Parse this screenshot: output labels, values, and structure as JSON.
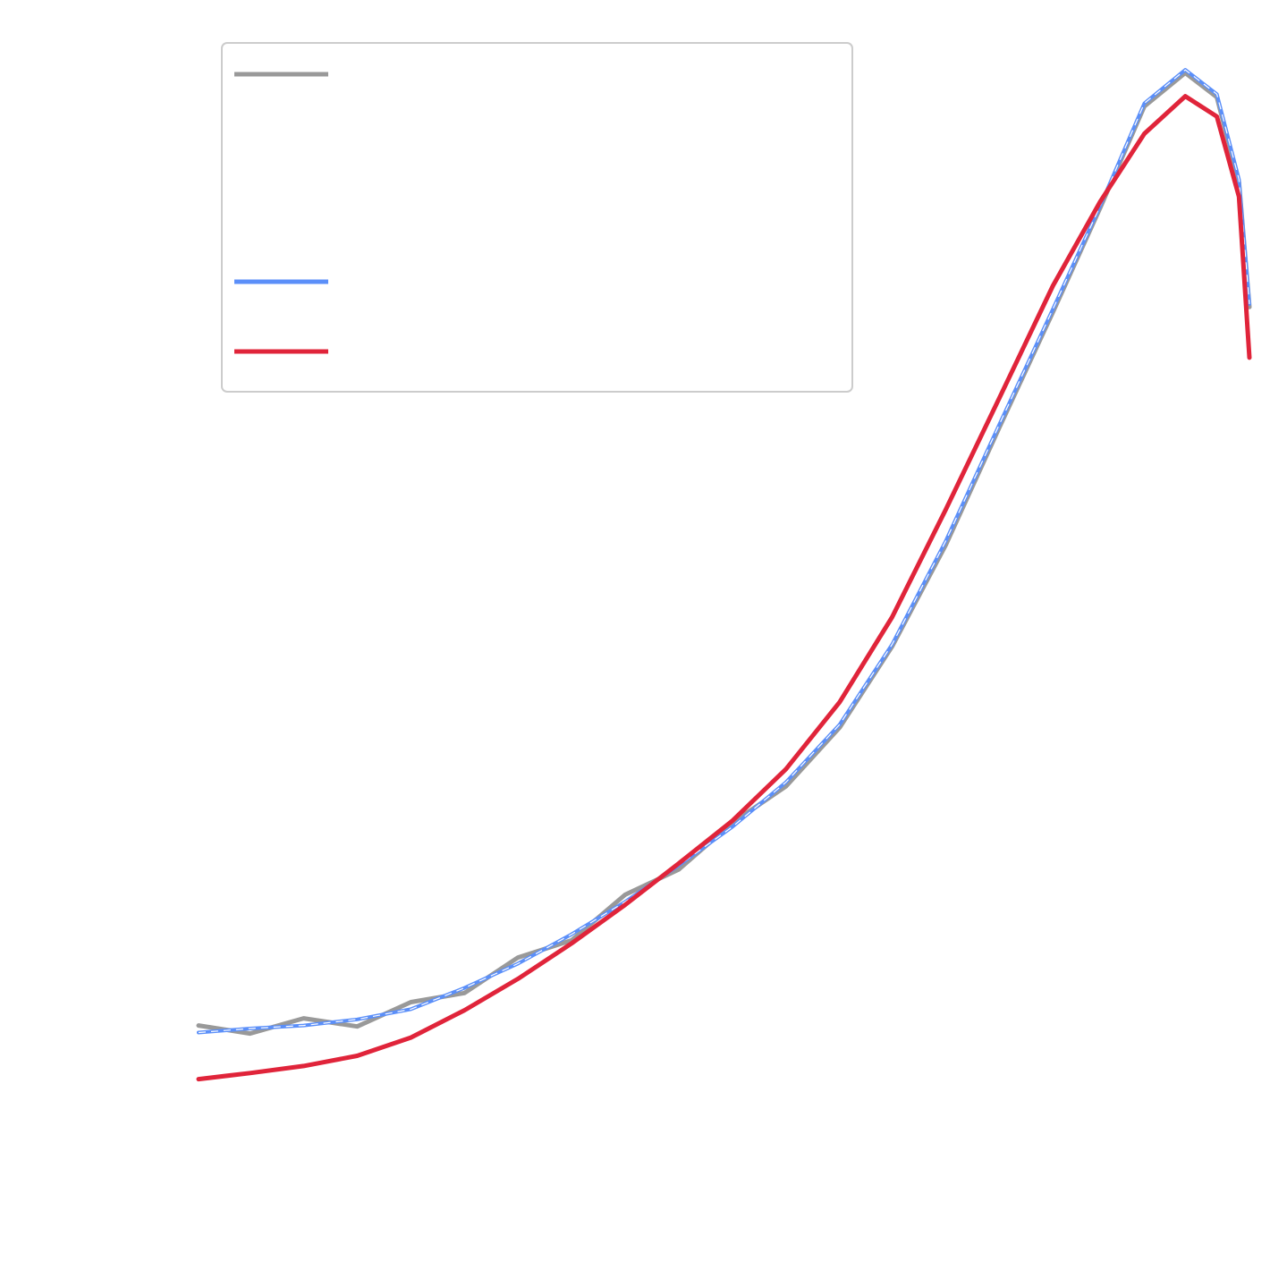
{
  "chart_data": {
    "type": "line",
    "x": [
      0,
      4.9,
      10.0,
      15.1,
      20.2,
      25.3,
      30.4,
      35.5,
      40.6,
      45.7,
      50.8,
      55.9,
      61.0,
      66.0,
      71.1,
      76.2,
      81.3,
      85.8,
      90.0,
      93.9,
      96.9,
      99.0,
      100
    ],
    "series": [
      {
        "color": "#999999",
        "values": [
          5.6,
          4.8,
          6.3,
          5.5,
          7.9,
          8.8,
          12.3,
          14.0,
          18.5,
          21.0,
          25.6,
          29.2,
          35.0,
          43.0,
          53.0,
          64.6,
          76.0,
          86.3,
          96.3,
          99.6,
          97.2,
          88.8,
          76.5
        ]
      },
      {
        "color": "#5b8ff9",
        "values": [
          4.9,
          5.3,
          5.6,
          6.2,
          7.2,
          9.3,
          11.7,
          14.6,
          17.8,
          21.4,
          25.2,
          29.6,
          35.3,
          43.2,
          53.4,
          64.9,
          76.3,
          86.5,
          96.6,
          99.9,
          97.5,
          89.1,
          76.8
        ]
      },
      {
        "color": "#e0243a",
        "values": [
          0.3,
          0.9,
          1.6,
          2.6,
          4.4,
          7.1,
          10.2,
          13.7,
          17.5,
          21.6,
          25.8,
          30.9,
          37.5,
          45.9,
          56.5,
          67.5,
          78.6,
          86.9,
          93.6,
          97.3,
          95.3,
          87.4,
          71.5
        ]
      }
    ],
    "xlim": [
      0,
      100
    ],
    "ylim": [
      0,
      100
    ],
    "legend": "upper left"
  }
}
